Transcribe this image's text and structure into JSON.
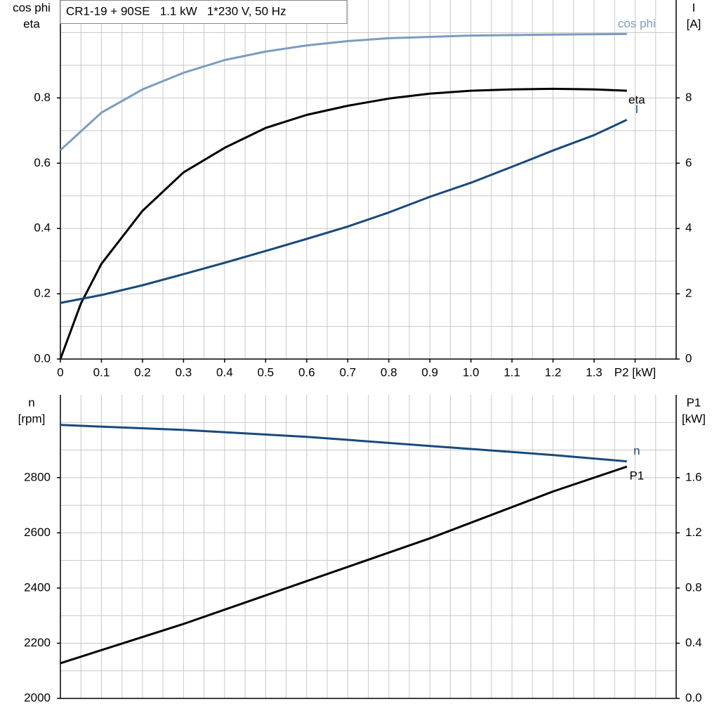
{
  "chart_data": [
    {
      "type": "line",
      "title": "CR1-19 + 90SE   1.1 kW   1*230 V, 50 Hz",
      "ylabel": [
        "cos phi",
        "eta"
      ],
      "y2label": [
        "I",
        "[A]"
      ],
      "xlim": [
        0,
        1.5
      ],
      "ylim": [
        0,
        1.1
      ],
      "y2lim": [
        0,
        11
      ],
      "xticks": [
        0,
        0.1,
        0.2,
        0.3,
        0.4,
        0.5,
        0.6,
        0.7,
        0.8,
        0.9,
        {
          "value": 1,
          "label": "1.0"
        },
        1.1,
        1.2,
        1.3,
        {
          "value": 1.4,
          "label": "P2 [kW]"
        }
      ],
      "yticks": [
        {
          "value": 0,
          "label": "0.0"
        },
        0.2,
        0.4,
        0.6,
        0.8
      ],
      "y2ticks": [
        0,
        2,
        4,
        6,
        8
      ],
      "xgrid": [
        0.05,
        0.15,
        0.25,
        0.35,
        0.45,
        0.55,
        0.65,
        0.75,
        0.85,
        0.95,
        1.05,
        1.15,
        1.25,
        1.35,
        1.45
      ],
      "ygrid": [
        0.1,
        0.3,
        0.5,
        0.7,
        0.9,
        1.0
      ],
      "series": [
        {
          "name": "cos phi",
          "color": "#7a9cc0",
          "axis": "y",
          "x": [
            0,
            0.1,
            0.2,
            0.3,
            0.4,
            0.5,
            0.6,
            0.7,
            0.8,
            0.9,
            1.0,
            1.2,
            1.38
          ],
          "values": [
            0.64,
            0.755,
            0.826,
            0.877,
            0.916,
            0.942,
            0.961,
            0.974,
            0.983,
            0.987,
            0.991,
            0.994,
            0.996
          ]
        },
        {
          "name": "eta",
          "color": "#000000",
          "axis": "y",
          "x": [
            0,
            0.05,
            0.1,
            0.2,
            0.3,
            0.4,
            0.5,
            0.6,
            0.7,
            0.8,
            0.9,
            1.0,
            1.1,
            1.2,
            1.3,
            1.38
          ],
          "values": [
            0,
            0.17,
            0.292,
            0.454,
            0.572,
            0.647,
            0.708,
            0.748,
            0.776,
            0.798,
            0.813,
            0.822,
            0.826,
            0.828,
            0.826,
            0.822
          ]
        },
        {
          "name": "I",
          "color": "#174a7c",
          "axis": "y2",
          "x": [
            0,
            0.1,
            0.2,
            0.3,
            0.4,
            0.5,
            0.6,
            0.7,
            0.8,
            0.9,
            1.0,
            1.1,
            1.2,
            1.3,
            1.38
          ],
          "values": [
            1.72,
            1.96,
            2.26,
            2.6,
            2.95,
            3.31,
            3.68,
            4.06,
            4.49,
            4.97,
            5.4,
            5.89,
            6.39,
            6.86,
            7.33
          ]
        }
      ]
    },
    {
      "type": "line",
      "ylabel": [
        "n",
        "[rpm]"
      ],
      "y2label": [
        "P1",
        "[kW]"
      ],
      "xlim": [
        0,
        1.5
      ],
      "ylim": [
        2000,
        3100
      ],
      "y2lim": [
        0,
        2.2
      ],
      "yticks": [
        2000,
        2200,
        2400,
        2600,
        2800
      ],
      "y2ticks": [
        {
          "value": 0,
          "label": "0.0"
        },
        0.4,
        0.8,
        1.2,
        1.6
      ],
      "xgrid": [
        0.05,
        0.1,
        0.15,
        0.2,
        0.25,
        0.3,
        0.35,
        0.4,
        0.45,
        0.5,
        0.55,
        0.6,
        0.65,
        0.7,
        0.75,
        0.8,
        0.85,
        0.9,
        0.95,
        1.0,
        1.05,
        1.1,
        1.15,
        1.2,
        1.25,
        1.3,
        1.35,
        1.4,
        1.45
      ],
      "ygrid": [
        2100,
        2300,
        2500,
        2700,
        2900,
        3000
      ],
      "series": [
        {
          "name": "n",
          "color": "#174a7c",
          "axis": "y",
          "x": [
            0,
            0.3,
            0.6,
            0.9,
            1.2,
            1.38
          ],
          "values": [
            2991,
            2973,
            2948,
            2915,
            2882,
            2859
          ]
        },
        {
          "name": "P1",
          "color": "#000000",
          "axis": "y2",
          "x": [
            0,
            0.3,
            0.6,
            0.9,
            1.2,
            1.38
          ],
          "values": [
            0.255,
            0.54,
            0.85,
            1.16,
            1.5,
            1.68
          ]
        }
      ]
    }
  ]
}
